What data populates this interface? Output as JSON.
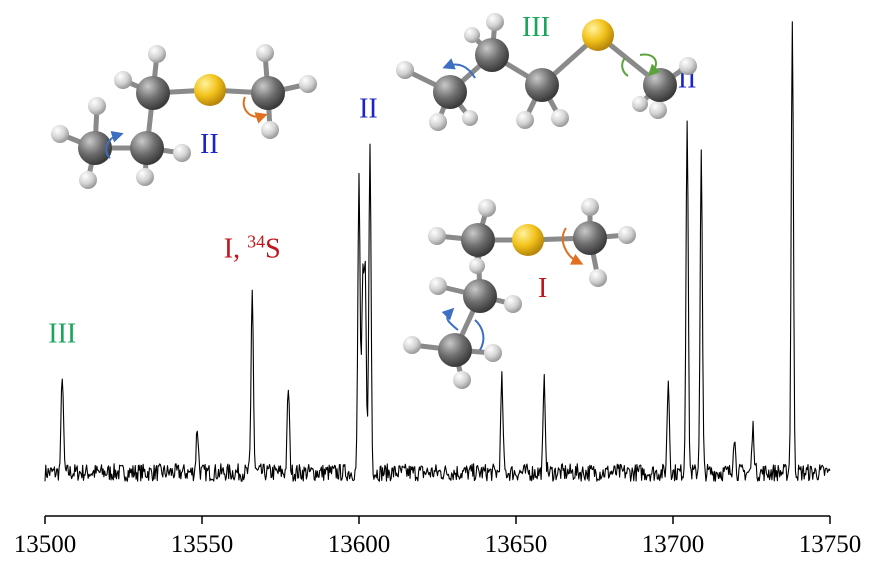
{
  "colors": {
    "form_I": "#c0151b",
    "form_II": "#1c23c9",
    "form_III": "#1aa55a",
    "trace": "#000000",
    "rotation_blue": "#3d6fc2",
    "rotation_orange": "#e07020",
    "rotation_green": "#5aa43a"
  },
  "chart_data": {
    "type": "line",
    "title": "",
    "xlabel": "",
    "ylabel": "",
    "xlim": [
      13500,
      13750
    ],
    "ylim": [
      0,
      1
    ],
    "x_ticks": [
      "13500",
      "13550",
      "13600",
      "13650",
      "13700",
      "13750"
    ],
    "x_tick_values": [
      13500,
      13550,
      13600,
      13650,
      13700,
      13750
    ],
    "grid": false,
    "baseline": 0.055,
    "series": [
      {
        "peaks": [
          {
            "x": 13505.5,
            "y": 0.255
          },
          {
            "x": 13548.5,
            "y": 0.145
          },
          {
            "x": 13566.0,
            "y": 0.425
          },
          {
            "x": 13577.5,
            "y": 0.225
          },
          {
            "x": 13600.0,
            "y": 0.645
          },
          {
            "x": 13601.2,
            "y": 0.42
          },
          {
            "x": 13602.0,
            "y": 0.44
          },
          {
            "x": 13603.5,
            "y": 0.71
          },
          {
            "x": 13645.5,
            "y": 0.24
          },
          {
            "x": 13659.0,
            "y": 0.235
          },
          {
            "x": 13698.5,
            "y": 0.24
          },
          {
            "x": 13704.5,
            "y": 0.77
          },
          {
            "x": 13709.0,
            "y": 0.69
          },
          {
            "x": 13719.5,
            "y": 0.13
          },
          {
            "x": 13725.5,
            "y": 0.145
          },
          {
            "x": 13738.0,
            "y": 0.96
          }
        ]
      }
    ],
    "annotations": [
      {
        "text": "III",
        "form": "III",
        "x": 13505.5,
        "y": 0.315
      },
      {
        "text": "I, ",
        "sup": "34",
        "after": "S",
        "form": "I",
        "x": 13566.0,
        "y": 0.485
      },
      {
        "text": "II",
        "form": "II",
        "x": 13603.0,
        "y": 0.765
      },
      {
        "text": "II",
        "form": "II",
        "x": 13704.5,
        "y": 0.825
      },
      {
        "text": "I",
        "form": "I",
        "x": 13738.0,
        "y": 1.0
      }
    ]
  },
  "molecules": [
    {
      "label": "II",
      "form": "II"
    },
    {
      "label": "III",
      "form": "III"
    },
    {
      "label": "I",
      "form": "I"
    }
  ]
}
